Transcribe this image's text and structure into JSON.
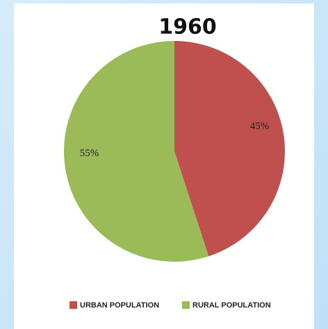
{
  "chart_data": {
    "type": "pie",
    "title": "1960",
    "categories": [
      "URBAN POPULATION",
      "RURAL POPULATION"
    ],
    "values": [
      45,
      55
    ],
    "value_labels": [
      "45%",
      "55%"
    ],
    "colors": [
      "#c0504d",
      "#9bbb59"
    ]
  }
}
